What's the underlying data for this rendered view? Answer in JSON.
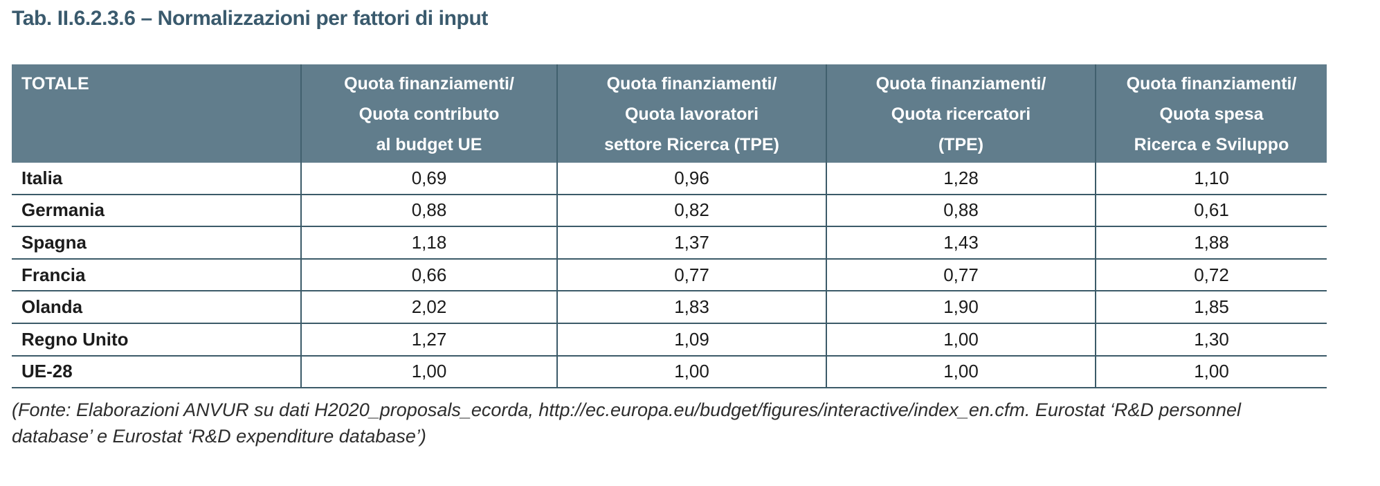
{
  "title": "Tab. II.6.2.3.6 – Normalizzazioni per fattori di input",
  "colors": {
    "header_background": "#617D8C",
    "header_text": "#FFFFFF",
    "title_text": "#3A5A6D",
    "border": "#3B5A68",
    "body_text": "#1B1B1B"
  },
  "table": {
    "corner_label": "TOTALE",
    "columns": [
      {
        "lines": [
          "Quota finanziamenti/",
          "Quota contributo",
          "al budget UE"
        ]
      },
      {
        "lines": [
          "Quota finanziamenti/",
          "Quota lavoratori",
          "settore Ricerca (TPE)"
        ]
      },
      {
        "lines": [
          "Quota finanziamenti/",
          "Quota ricercatori",
          "(TPE)"
        ]
      },
      {
        "lines": [
          "Quota finanziamenti/",
          "Quota spesa",
          "Ricerca e Sviluppo"
        ]
      }
    ],
    "rows": [
      {
        "label": "Italia",
        "values": [
          "0,69",
          "0,96",
          "1,28",
          "1,10"
        ]
      },
      {
        "label": "Germania",
        "values": [
          "0,88",
          "0,82",
          "0,88",
          "0,61"
        ]
      },
      {
        "label": "Spagna",
        "values": [
          "1,18",
          "1,37",
          "1,43",
          "1,88"
        ]
      },
      {
        "label": "Francia",
        "values": [
          "0,66",
          "0,77",
          "0,77",
          "0,72"
        ]
      },
      {
        "label": "Olanda",
        "values": [
          "2,02",
          "1,83",
          "1,90",
          "1,85"
        ]
      },
      {
        "label": "Regno Unito",
        "values": [
          "1,27",
          "1,09",
          "1,00",
          "1,30"
        ]
      },
      {
        "label": "UE-28",
        "values": [
          "1,00",
          "1,00",
          "1,00",
          "1,00"
        ]
      }
    ]
  },
  "source_note": {
    "line1": "(Fonte: Elaborazioni ANVUR su dati H2020_proposals_ecorda, http://ec.europa.eu/budget/figures/interactive/index_en.cfm. Eurostat ‘R&D personnel",
    "line2": "database’ e Eurostat ‘R&D expenditure database’)"
  }
}
